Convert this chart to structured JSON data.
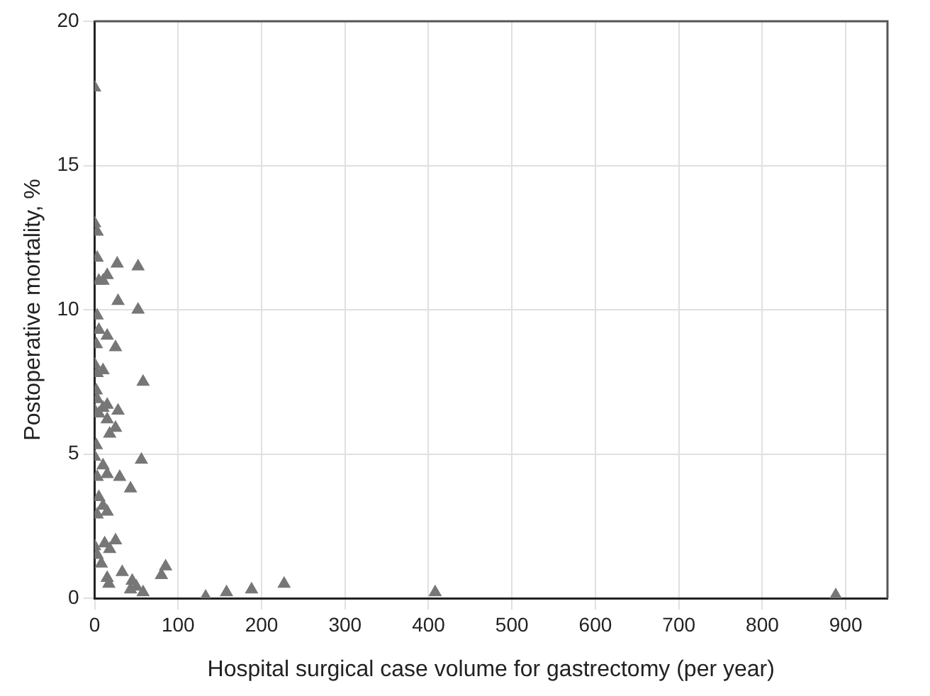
{
  "chart_data": {
    "type": "scatter",
    "xlabel": "Hospital surgical case volume for gastrectomy (per year)",
    "ylabel": "Postoperative mortality, %",
    "x": [
      0,
      0,
      3,
      3,
      15,
      27,
      52,
      5,
      10,
      52,
      28,
      3,
      5,
      15,
      25,
      2,
      0,
      3,
      10,
      58,
      2,
      3,
      0,
      5,
      10,
      15,
      28,
      15,
      25,
      18,
      2,
      0,
      10,
      15,
      30,
      56,
      43,
      3,
      5,
      10,
      15,
      3,
      0,
      3,
      12,
      18,
      25,
      8,
      15,
      17,
      33,
      45,
      50,
      43,
      58,
      80,
      85,
      133,
      158,
      188,
      227,
      408,
      888
    ],
    "values": [
      17.7,
      13,
      12.7,
      11.8,
      11.2,
      11.6,
      11.5,
      11,
      11,
      10,
      10.3,
      9.8,
      9.3,
      9.1,
      8.7,
      8.8,
      8.1,
      7.8,
      7.9,
      7.5,
      7.2,
      6.9,
      6.5,
      6.4,
      6.6,
      6.7,
      6.5,
      6.2,
      5.9,
      5.7,
      5.3,
      4.9,
      4.6,
      4.3,
      4.2,
      4.8,
      3.8,
      4.2,
      3.5,
      3.2,
      3,
      2.9,
      1.8,
      1.5,
      1.9,
      1.7,
      2,
      1.2,
      0.7,
      0.5,
      0.9,
      0.6,
      0.4,
      0.3,
      0.2,
      0.8,
      1.1,
      0.05,
      0.2,
      0.3,
      0.5,
      0.2,
      0.1
    ],
    "color": "#777777",
    "marker": "triangle",
    "xlim": [
      0,
      950
    ],
    "xticks": [
      0,
      100,
      200,
      300,
      400,
      500,
      600,
      700,
      800,
      900
    ],
    "ylim": [
      0,
      20
    ],
    "yticks": [
      0,
      5,
      10,
      15,
      20
    ],
    "grid": true,
    "legend": false
  }
}
